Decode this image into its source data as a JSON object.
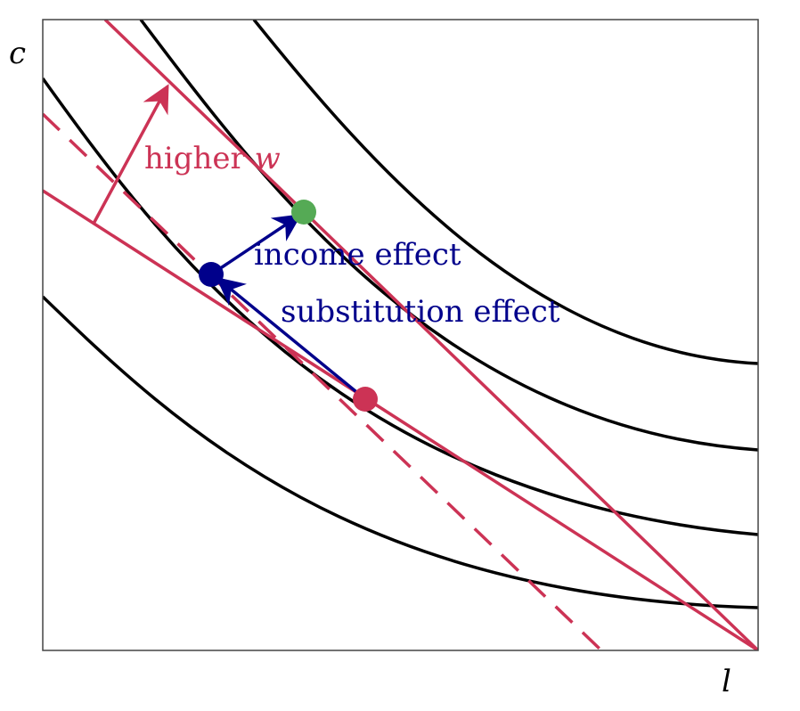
{
  "axes": {
    "x_label": "l",
    "y_label": "c"
  },
  "annotations": {
    "higher_w": "higher ",
    "higher_w_var": "w",
    "income_effect": "income effect",
    "substitution_effect": "substitution effect"
  },
  "colors": {
    "budget": "#cc3355",
    "effect_arrows": "#00008b",
    "initial_point": "#cc3355",
    "intermediate_point": "#00008b",
    "final_point": "#55aa55",
    "indifference_curves": "#000000",
    "frame": "#444444"
  },
  "chart_data": {
    "type": "diagram",
    "x_label": "l",
    "y_label": "c",
    "indifference_curves": 4,
    "budget_lines": [
      "original wage",
      "higher wage",
      "compensated (dashed)"
    ],
    "points": [
      "initial",
      "after substitution effect",
      "after income effect"
    ],
    "arrows": [
      "higher w",
      "substitution effect",
      "income effect"
    ]
  }
}
